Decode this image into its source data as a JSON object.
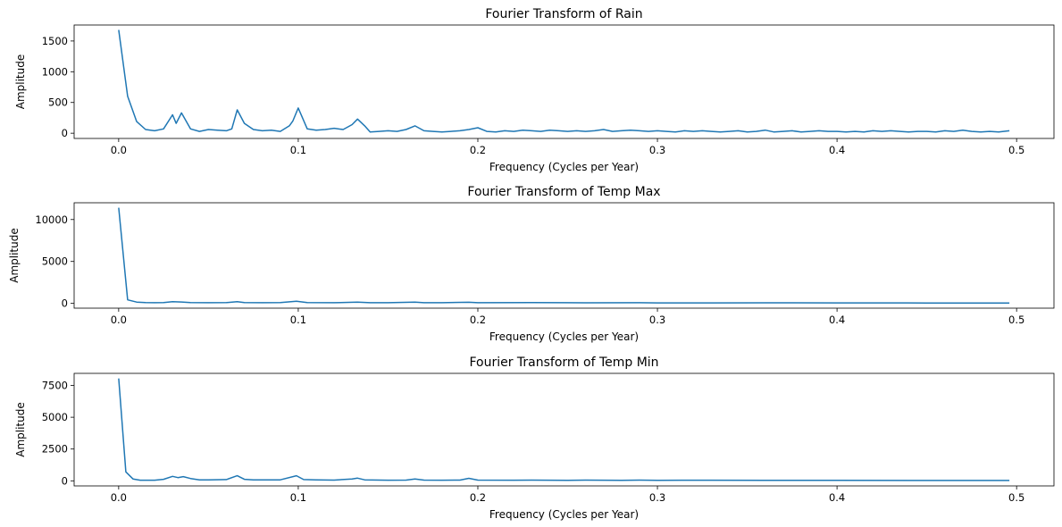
{
  "chart_data": [
    {
      "type": "line",
      "title": "Fourier Transform of Rain",
      "xlabel": "Frequency (Cycles per Year)",
      "ylabel": "Amplitude",
      "xlim": [
        -0.0248,
        0.5208
      ],
      "ylim": [
        -85,
        1760
      ],
      "xticks": [
        "0.0",
        "0.1",
        "0.2",
        "0.3",
        "0.4",
        "0.5"
      ],
      "yticks": [
        {
          "value": 0,
          "label": "0"
        },
        {
          "value": 500,
          "label": "500"
        },
        {
          "value": 1000,
          "label": "1000"
        },
        {
          "value": 1500,
          "label": "1500"
        }
      ],
      "color": "#1f77b4",
      "grid": false,
      "series": [
        {
          "x": [
            0,
            0.005,
            0.01,
            0.015,
            0.02,
            0.025,
            0.03,
            0.032,
            0.035,
            0.04,
            0.045,
            0.05,
            0.055,
            0.06,
            0.063,
            0.066,
            0.07,
            0.075,
            0.08,
            0.085,
            0.09,
            0.095,
            0.097,
            0.1,
            0.105,
            0.11,
            0.115,
            0.12,
            0.125,
            0.13,
            0.133,
            0.137,
            0.14,
            0.145,
            0.15,
            0.155,
            0.16,
            0.165,
            0.17,
            0.175,
            0.18,
            0.185,
            0.19,
            0.195,
            0.2,
            0.205,
            0.21,
            0.215,
            0.22,
            0.225,
            0.23,
            0.235,
            0.24,
            0.245,
            0.25,
            0.255,
            0.26,
            0.265,
            0.27,
            0.275,
            0.28,
            0.285,
            0.29,
            0.295,
            0.3,
            0.305,
            0.31,
            0.315,
            0.32,
            0.325,
            0.33,
            0.335,
            0.34,
            0.345,
            0.35,
            0.355,
            0.36,
            0.365,
            0.37,
            0.375,
            0.38,
            0.385,
            0.39,
            0.395,
            0.4,
            0.405,
            0.41,
            0.415,
            0.42,
            0.425,
            0.43,
            0.435,
            0.44,
            0.445,
            0.45,
            0.455,
            0.46,
            0.465,
            0.47,
            0.475,
            0.48,
            0.485,
            0.49,
            0.496
          ],
          "y": [
            1680,
            600,
            190,
            60,
            40,
            70,
            300,
            160,
            330,
            70,
            30,
            60,
            50,
            40,
            70,
            380,
            160,
            60,
            40,
            50,
            30,
            120,
            200,
            410,
            70,
            50,
            60,
            80,
            60,
            140,
            230,
            120,
            20,
            30,
            40,
            30,
            60,
            120,
            40,
            30,
            20,
            30,
            40,
            60,
            90,
            30,
            20,
            40,
            30,
            50,
            40,
            30,
            50,
            40,
            30,
            40,
            30,
            40,
            60,
            30,
            40,
            50,
            40,
            30,
            40,
            30,
            20,
            40,
            30,
            40,
            30,
            20,
            30,
            40,
            20,
            30,
            50,
            20,
            30,
            40,
            20,
            30,
            40,
            30,
            30,
            20,
            30,
            20,
            40,
            30,
            40,
            30,
            20,
            30,
            30,
            20,
            40,
            30,
            50,
            30,
            20,
            30,
            20,
            40
          ]
        }
      ]
    },
    {
      "type": "line",
      "title": "Fourier Transform of Temp Max",
      "xlabel": "Frequency (Cycles per Year)",
      "ylabel": "Amplitude",
      "xlim": [
        -0.0248,
        0.5208
      ],
      "ylim": [
        -570,
        12000
      ],
      "xticks": [
        "0.0",
        "0.1",
        "0.2",
        "0.3",
        "0.4",
        "0.5"
      ],
      "yticks": [
        {
          "value": 0,
          "label": "0"
        },
        {
          "value": 5000,
          "label": "5000"
        },
        {
          "value": 10000,
          "label": "10000"
        }
      ],
      "color": "#1f77b4",
      "grid": false,
      "series": [
        {
          "x": [
            0,
            0.005,
            0.01,
            0.015,
            0.02,
            0.025,
            0.03,
            0.035,
            0.04,
            0.05,
            0.06,
            0.066,
            0.07,
            0.08,
            0.09,
            0.099,
            0.105,
            0.12,
            0.133,
            0.14,
            0.15,
            0.165,
            0.17,
            0.18,
            0.195,
            0.2,
            0.23,
            0.26,
            0.29,
            0.3,
            0.33,
            0.36,
            0.4,
            0.45,
            0.496
          ],
          "y": [
            11400,
            420,
            150,
            100,
            80,
            100,
            200,
            160,
            90,
            80,
            90,
            200,
            100,
            80,
            90,
            250,
            100,
            80,
            150,
            80,
            80,
            150,
            80,
            80,
            130,
            80,
            90,
            70,
            80,
            60,
            60,
            70,
            60,
            50,
            50
          ]
        }
      ]
    },
    {
      "type": "line",
      "title": "Fourier Transform of Temp Min",
      "xlabel": "Frequency (Cycles per Year)",
      "ylabel": "Amplitude",
      "xlim": [
        -0.0248,
        0.5208
      ],
      "ylim": [
        -400,
        8450
      ],
      "xticks": [
        "0.0",
        "0.1",
        "0.2",
        "0.3",
        "0.4",
        "0.5"
      ],
      "yticks": [
        {
          "value": 0,
          "label": "0"
        },
        {
          "value": 2500,
          "label": "2500"
        },
        {
          "value": 5000,
          "label": "5000"
        },
        {
          "value": 7500,
          "label": "7500"
        }
      ],
      "color": "#1f77b4",
      "grid": false,
      "series": [
        {
          "x": [
            0,
            0.004,
            0.008,
            0.012,
            0.02,
            0.025,
            0.03,
            0.033,
            0.036,
            0.04,
            0.045,
            0.05,
            0.06,
            0.066,
            0.07,
            0.075,
            0.08,
            0.09,
            0.099,
            0.103,
            0.11,
            0.12,
            0.13,
            0.133,
            0.137,
            0.15,
            0.16,
            0.165,
            0.17,
            0.18,
            0.19,
            0.195,
            0.2,
            0.22,
            0.23,
            0.25,
            0.26,
            0.28,
            0.29,
            0.3,
            0.33,
            0.36,
            0.4,
            0.45,
            0.496
          ],
          "y": [
            8050,
            700,
            150,
            50,
            50,
            120,
            350,
            250,
            330,
            180,
            80,
            70,
            100,
            400,
            120,
            80,
            70,
            80,
            400,
            100,
            70,
            60,
            150,
            210,
            80,
            50,
            60,
            150,
            60,
            50,
            60,
            200,
            60,
            50,
            60,
            40,
            60,
            40,
            60,
            40,
            50,
            40,
            40,
            30,
            30
          ]
        }
      ]
    }
  ]
}
